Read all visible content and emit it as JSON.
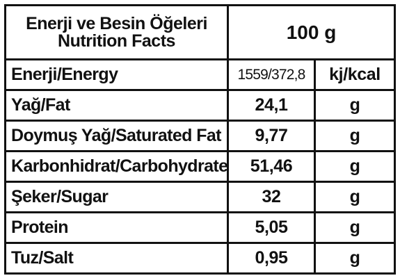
{
  "header": {
    "title_tr": "Enerji ve Besin Öğeleri",
    "title_en": "Nutrition Facts",
    "serving": "100 g"
  },
  "rows": [
    {
      "name": "Enerji/Energy",
      "value": "1559/372,8",
      "unit": "kj/kcal"
    },
    {
      "name": "Yağ/Fat",
      "value": "24,1",
      "unit": "g"
    },
    {
      "name": "Doymuş Yağ/Saturated Fat",
      "value": "9,77",
      "unit": "g"
    },
    {
      "name": "Karbonhidrat/Carbohydrate",
      "value": "51,46",
      "unit": "g"
    },
    {
      "name": "Şeker/Sugar",
      "value": "32",
      "unit": "g"
    },
    {
      "name": "Protein",
      "value": "5,05",
      "unit": "g"
    },
    {
      "name": "Tuz/Salt",
      "value": "0,95",
      "unit": "g"
    }
  ]
}
